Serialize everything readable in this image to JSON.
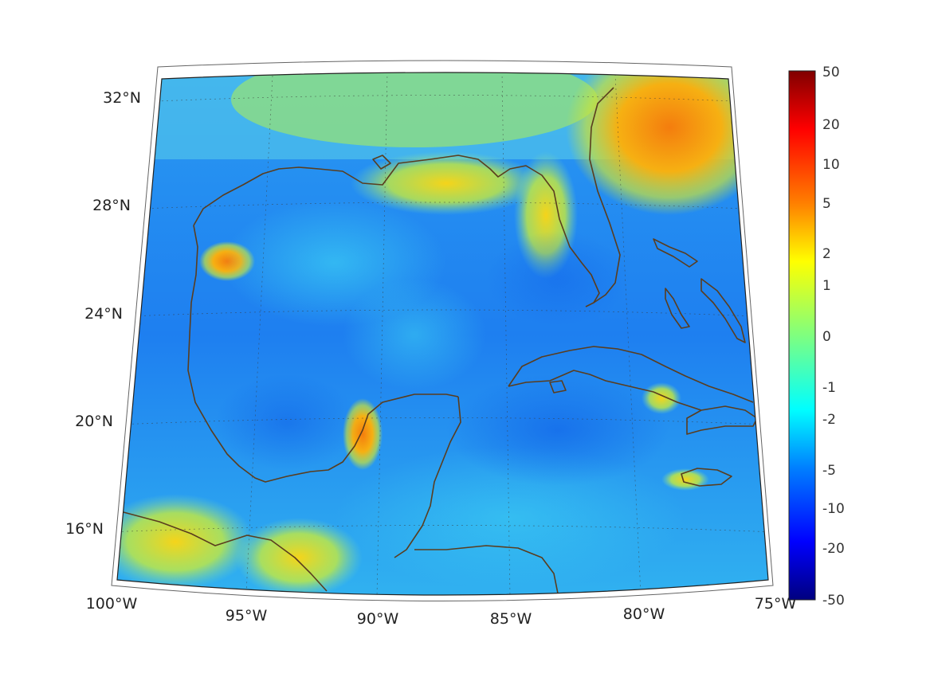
{
  "map": {
    "projection": "conic",
    "lon_range": [
      -100,
      -75
    ],
    "lat_range": [
      14,
      33
    ],
    "lon_ticks": [
      {
        "value": -100,
        "label": "100°W"
      },
      {
        "value": -95,
        "label": "95°W"
      },
      {
        "value": -90,
        "label": "90°W"
      },
      {
        "value": -85,
        "label": "85°W"
      },
      {
        "value": -80,
        "label": "80°W"
      },
      {
        "value": -75,
        "label": "75°W"
      }
    ],
    "lat_ticks": [
      {
        "value": 32,
        "label": "32°N"
      },
      {
        "value": 28,
        "label": "28°N"
      },
      {
        "value": 24,
        "label": "24°N"
      },
      {
        "value": 20,
        "label": "20°N"
      },
      {
        "value": 16,
        "label": "16°N"
      }
    ],
    "grid": true,
    "coastline_color": "#5a3d1e"
  },
  "colorbar": {
    "orientation": "vertical",
    "placement": "right",
    "colormap": "jet",
    "tick_labels": [
      "50",
      "20",
      "10",
      "5",
      "2",
      "1",
      "0",
      "-1",
      "-2",
      "-5",
      "-10",
      "-20",
      "-50"
    ]
  }
}
